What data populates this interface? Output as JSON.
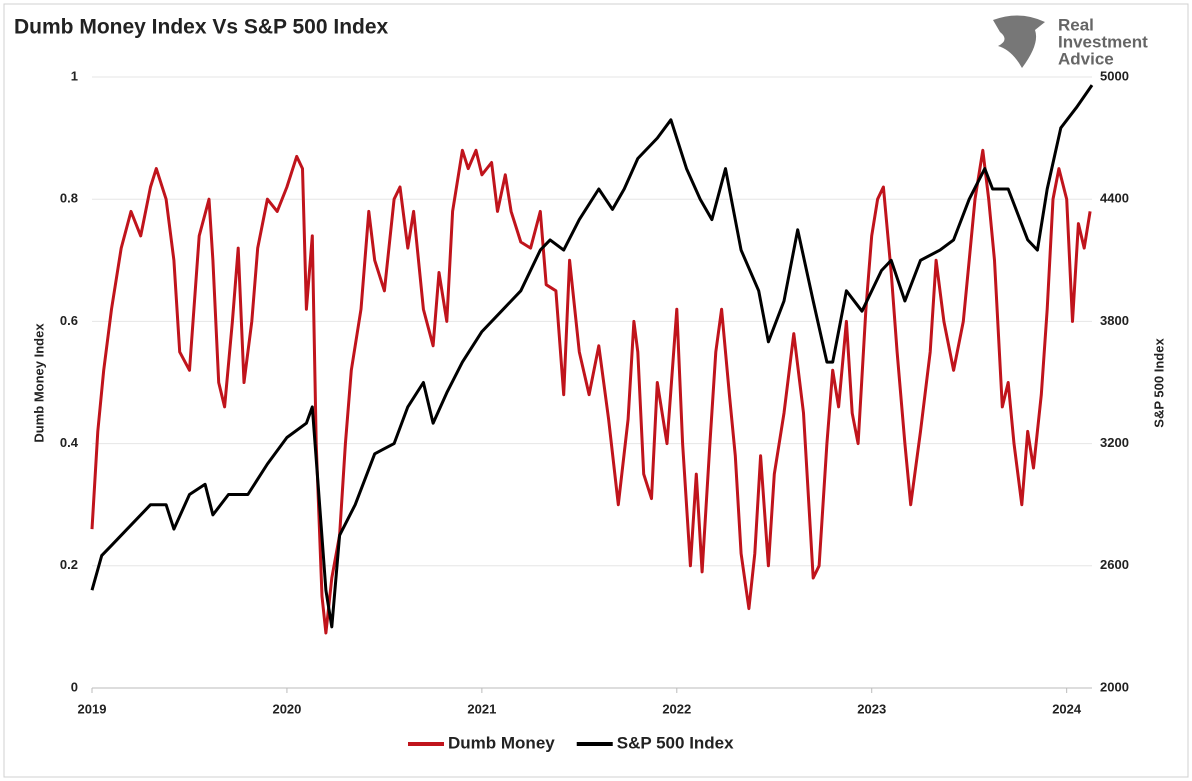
{
  "chart_data": {
    "type": "line",
    "title": "Dumb Money Index Vs S&P 500 Index",
    "annotations": [
      "Real",
      "Investment",
      "Advice"
    ],
    "y_label": "Dumb Money Index",
    "y2_label": "S&P 500 Index",
    "xlim": [
      2019,
      2024.13
    ],
    "xticks": [
      2019,
      2020,
      2021,
      2022,
      2023,
      2024
    ],
    "ylim": [
      0,
      1
    ],
    "yticks": [
      0,
      0.2,
      0.4,
      0.6,
      0.8,
      1
    ],
    "y2lim": [
      2000,
      5000
    ],
    "y2ticks": [
      2000,
      2600,
      3200,
      3800,
      4400,
      5000
    ],
    "grid": true,
    "legend": "bottom",
    "series": [
      {
        "name": "Dumb Money",
        "color": "#c0141c",
        "x": [
          2019.0,
          2019.03,
          2019.06,
          2019.1,
          2019.15,
          2019.2,
          2019.25,
          2019.3,
          2019.33,
          2019.38,
          2019.42,
          2019.45,
          2019.5,
          2019.55,
          2019.6,
          2019.62,
          2019.65,
          2019.68,
          2019.72,
          2019.75,
          2019.78,
          2019.82,
          2019.85,
          2019.9,
          2019.95,
          2020.0,
          2020.05,
          2020.08,
          2020.1,
          2020.13,
          2020.15,
          2020.18,
          2020.2,
          2020.23,
          2020.27,
          2020.3,
          2020.33,
          2020.38,
          2020.42,
          2020.45,
          2020.5,
          2020.55,
          2020.58,
          2020.62,
          2020.65,
          2020.7,
          2020.75,
          2020.78,
          2020.82,
          2020.85,
          2020.9,
          2020.93,
          2020.97,
          2021.0,
          2021.05,
          2021.08,
          2021.12,
          2021.15,
          2021.2,
          2021.25,
          2021.3,
          2021.33,
          2021.38,
          2021.42,
          2021.45,
          2021.5,
          2021.55,
          2021.6,
          2021.65,
          2021.7,
          2021.75,
          2021.78,
          2021.8,
          2021.83,
          2021.87,
          2021.9,
          2021.95,
          2022.0,
          2022.03,
          2022.07,
          2022.1,
          2022.13,
          2022.17,
          2022.2,
          2022.23,
          2022.27,
          2022.3,
          2022.33,
          2022.37,
          2022.4,
          2022.43,
          2022.47,
          2022.5,
          2022.55,
          2022.6,
          2022.65,
          2022.7,
          2022.73,
          2022.77,
          2022.8,
          2022.83,
          2022.87,
          2022.9,
          2022.93,
          2022.97,
          2023.0,
          2023.03,
          2023.06,
          2023.1,
          2023.13,
          2023.17,
          2023.2,
          2023.25,
          2023.3,
          2023.33,
          2023.37,
          2023.42,
          2023.47,
          2023.5,
          2023.53,
          2023.57,
          2023.6,
          2023.63,
          2023.67,
          2023.7,
          2023.73,
          2023.77,
          2023.8,
          2023.83,
          2023.87,
          2023.9,
          2023.93,
          2023.96,
          2024.0,
          2024.03,
          2024.06,
          2024.09,
          2024.12
        ],
        "values": [
          0.26,
          0.42,
          0.52,
          0.62,
          0.72,
          0.78,
          0.74,
          0.82,
          0.85,
          0.8,
          0.7,
          0.55,
          0.52,
          0.74,
          0.8,
          0.7,
          0.5,
          0.46,
          0.6,
          0.72,
          0.5,
          0.6,
          0.72,
          0.8,
          0.78,
          0.82,
          0.87,
          0.85,
          0.62,
          0.74,
          0.4,
          0.15,
          0.09,
          0.18,
          0.25,
          0.4,
          0.52,
          0.62,
          0.78,
          0.7,
          0.65,
          0.8,
          0.82,
          0.72,
          0.78,
          0.62,
          0.56,
          0.68,
          0.6,
          0.78,
          0.88,
          0.85,
          0.88,
          0.84,
          0.86,
          0.78,
          0.84,
          0.78,
          0.73,
          0.72,
          0.78,
          0.66,
          0.65,
          0.48,
          0.7,
          0.55,
          0.48,
          0.56,
          0.44,
          0.3,
          0.44,
          0.6,
          0.55,
          0.35,
          0.31,
          0.5,
          0.4,
          0.62,
          0.4,
          0.2,
          0.35,
          0.19,
          0.4,
          0.55,
          0.62,
          0.48,
          0.38,
          0.22,
          0.13,
          0.22,
          0.38,
          0.2,
          0.35,
          0.45,
          0.58,
          0.45,
          0.18,
          0.2,
          0.4,
          0.52,
          0.46,
          0.6,
          0.45,
          0.4,
          0.62,
          0.74,
          0.8,
          0.82,
          0.68,
          0.55,
          0.4,
          0.3,
          0.42,
          0.55,
          0.7,
          0.6,
          0.52,
          0.6,
          0.7,
          0.8,
          0.88,
          0.8,
          0.7,
          0.46,
          0.5,
          0.4,
          0.3,
          0.42,
          0.36,
          0.48,
          0.62,
          0.8,
          0.85,
          0.8,
          0.6,
          0.76,
          0.72,
          0.78
        ]
      },
      {
        "name": "S&P 500 Index",
        "color": "#000000",
        "axis": "y2",
        "x": [
          2019.0,
          2019.05,
          2019.1,
          2019.2,
          2019.3,
          2019.38,
          2019.42,
          2019.5,
          2019.58,
          2019.62,
          2019.7,
          2019.8,
          2019.9,
          2020.0,
          2020.1,
          2020.13,
          2020.16,
          2020.2,
          2020.23,
          2020.27,
          2020.35,
          2020.45,
          2020.55,
          2020.62,
          2020.7,
          2020.75,
          2020.82,
          2020.9,
          2021.0,
          2021.1,
          2021.2,
          2021.3,
          2021.35,
          2021.42,
          2021.5,
          2021.6,
          2021.67,
          2021.73,
          2021.8,
          2021.9,
          2021.97,
          2022.05,
          2022.12,
          2022.18,
          2022.25,
          2022.33,
          2022.42,
          2022.47,
          2022.55,
          2022.62,
          2022.7,
          2022.77,
          2022.8,
          2022.87,
          2022.95,
          2023.05,
          2023.1,
          2023.17,
          2023.25,
          2023.35,
          2023.42,
          2023.5,
          2023.58,
          2023.62,
          2023.7,
          2023.8,
          2023.85,
          2023.9,
          2023.97,
          2024.05,
          2024.13
        ],
        "values": [
          2480,
          2650,
          2700,
          2800,
          2900,
          2900,
          2780,
          2950,
          3000,
          2850,
          2950,
          2950,
          3100,
          3230,
          3300,
          3380,
          3000,
          2480,
          2300,
          2750,
          2900,
          3150,
          3200,
          3380,
          3500,
          3300,
          3450,
          3600,
          3750,
          3850,
          3950,
          4150,
          4200,
          4150,
          4300,
          4450,
          4350,
          4450,
          4600,
          4700,
          4790,
          4550,
          4400,
          4300,
          4550,
          4150,
          3950,
          3700,
          3900,
          4250,
          3900,
          3600,
          3600,
          3950,
          3850,
          4050,
          4100,
          3900,
          4100,
          4150,
          4200,
          4400,
          4550,
          4450,
          4450,
          4200,
          4150,
          4450,
          4750,
          4850,
          4960
        ]
      }
    ]
  }
}
